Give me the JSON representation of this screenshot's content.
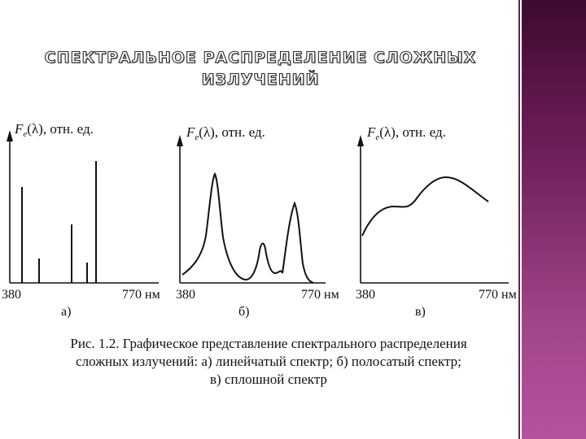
{
  "title": {
    "line1": "СПЕКТРАЛЬНОЕ РАСПРЕДЕЛЕНИЕ СЛОЖНЫХ",
    "line2": "ИЗЛУЧЕНИЙ"
  },
  "panels": [
    {
      "ylabel_prefix": "F",
      "ylabel_sub": "e",
      "ylabel_rest": "(λ), отн. ед.",
      "x_start": "380",
      "x_end": "770 нм",
      "letter": "а)"
    },
    {
      "ylabel_prefix": "F",
      "ylabel_sub": "e",
      "ylabel_rest": "(λ), отн. ед.",
      "x_start": "380",
      "x_end": "770 нм",
      "letter": "б)"
    },
    {
      "ylabel_prefix": "F",
      "ylabel_sub": "e",
      "ylabel_rest": "(λ), отн. ед.",
      "x_start": "380",
      "x_end": "770 нм",
      "letter": "в)"
    }
  ],
  "caption": {
    "line1": "Рис. 1.2. Графическое представление спектрального распределения",
    "line2": "сложных излучений: а) линейчатый спектр; б) полосатый спектр;",
    "line3": "в) сплошной спектр"
  },
  "colors": {
    "side_bar": "#6f1f59",
    "ink": "#111111"
  }
}
